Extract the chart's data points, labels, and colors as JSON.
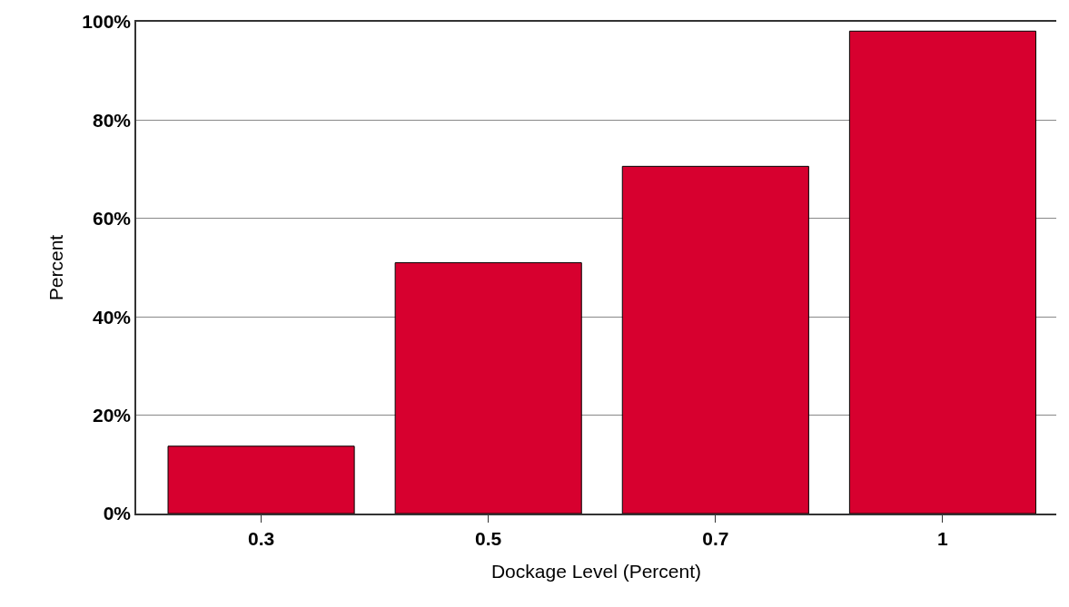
{
  "chart_data": {
    "type": "bar",
    "xlabel": "Dockage Level (Percent)",
    "ylabel": "Percent",
    "categories": [
      "0.3",
      "0.5",
      "0.7",
      "1"
    ],
    "values": [
      13.7,
      51.0,
      70.6,
      98.1
    ],
    "color": "#d7002f",
    "ylim": [
      0,
      100
    ],
    "yticks": [
      {
        "value": 0,
        "label": "0%"
      },
      {
        "value": 20,
        "label": "20%"
      },
      {
        "value": 40,
        "label": "40%"
      },
      {
        "value": 60,
        "label": "60%"
      },
      {
        "value": 80,
        "label": "80%"
      },
      {
        "value": 100,
        "label": "100%"
      }
    ],
    "grid": "y",
    "legend": false
  }
}
